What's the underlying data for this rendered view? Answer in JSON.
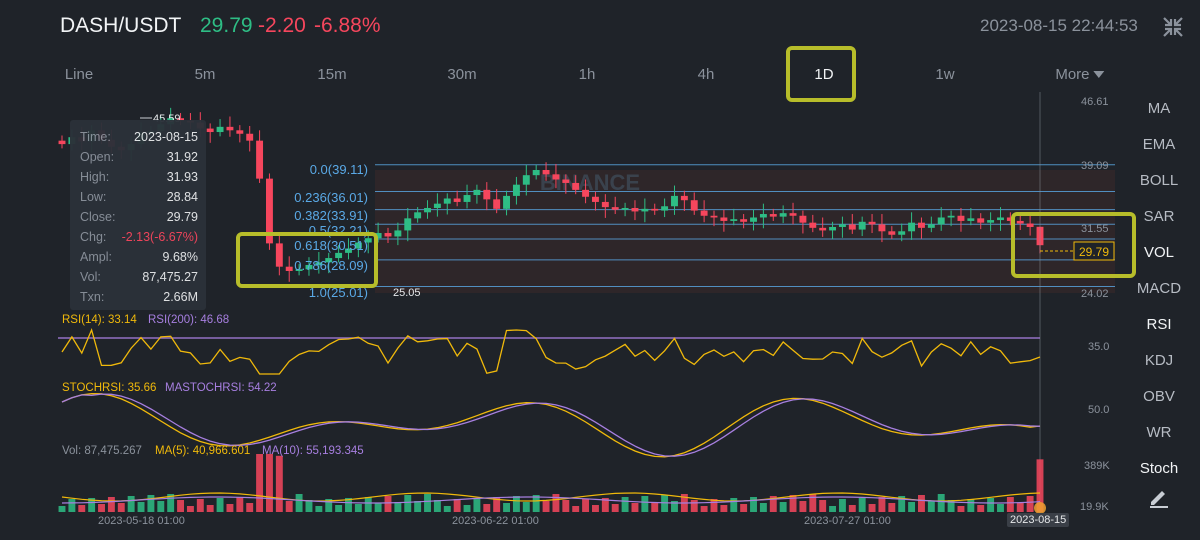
{
  "header": {
    "pair": "DASH/USDT",
    "last_price": "29.79",
    "change": "-2.20",
    "change_pct": "-6.88%",
    "timestamp": "2023-08-15 22:44:53",
    "fullscreen_icon": "collapse-arrows-icon"
  },
  "tabs": [
    {
      "label": "Line"
    },
    {
      "label": "5m"
    },
    {
      "label": "15m"
    },
    {
      "label": "30m"
    },
    {
      "label": "1h"
    },
    {
      "label": "4h"
    },
    {
      "label": "1D"
    },
    {
      "label": "1w"
    },
    {
      "label": "More"
    }
  ],
  "active_tab": "1D",
  "indicators": [
    "MA",
    "EMA",
    "BOLL",
    "SAR",
    "VOL",
    "MACD",
    "RSI",
    "KDJ",
    "OBV",
    "WR",
    "Stoch"
  ],
  "active_indicators": [
    "VOL",
    "RSI"
  ],
  "edit_icon": "pencil-icon",
  "tooltip": {
    "rows": [
      {
        "k": "Time:",
        "v": "2023-08-15"
      },
      {
        "k": "Open:",
        "v": "31.92"
      },
      {
        "k": "High:",
        "v": "31.93"
      },
      {
        "k": "Low:",
        "v": "28.84"
      },
      {
        "k": "Close:",
        "v": "29.79"
      },
      {
        "k": "Chg:",
        "v": "-2.13(-6.67%)"
      },
      {
        "k": "Ampl:",
        "v": "9.68%"
      },
      {
        "k": "Vol:",
        "v": "87,475.27"
      },
      {
        "k": "Txn:",
        "v": "2.66M"
      }
    ]
  },
  "price_axis": {
    "top": "46.61",
    "p2": "39.09",
    "p3": "31.55",
    "bottom": "24.02"
  },
  "high_marker": "45.59",
  "low_marker": "25.05",
  "current_price_label": "29.79",
  "fib_levels": [
    {
      "label": "0.0(39.11)"
    },
    {
      "label": "0.236(36.01)"
    },
    {
      "label": "0.382(33.91)"
    },
    {
      "label": "0.5(32.21)"
    },
    {
      "label": "0.618(30.51)"
    },
    {
      "label": "0.786(28.09)"
    },
    {
      "label": "1.0(25.01)"
    }
  ],
  "watermark": "BINANCE",
  "rsi": {
    "rsi14": "RSI(14): 33.14",
    "rsi200": "RSI(200): 46.68",
    "axis": "35.0"
  },
  "stochrsi": {
    "stoch": "STOCHRSI: 35.66",
    "mastoch": "MASTOCHRSI: 54.22",
    "axis": "50.0"
  },
  "volume": {
    "vol": "Vol: 87,475.267",
    "ma5": "MA(5): 40,966.601",
    "ma10": "MA(10): 55,193.345",
    "axis_top": "389K",
    "axis_bottom": "19.9K"
  },
  "dates": [
    "2023-05-18 01:00",
    "2023-06-22 01:00",
    "2023-07-27 01:00",
    "2023-08-15"
  ],
  "colors": {
    "up": "#2ebd85",
    "down": "#f6465d",
    "fib": "#5aa9e6",
    "highlight": "#b7bd2a",
    "rsi14": "#f0b90b",
    "rsi200": "#a77fe0"
  },
  "chart_data": {
    "type": "candlestick",
    "closes": [
      41.5,
      42.3,
      41.8,
      43.1,
      42.0,
      41.2,
      40.8,
      41.5,
      42.8,
      43.0,
      43.8,
      44.5,
      44.2,
      44.0,
      43.3,
      42.9,
      43.5,
      43.1,
      42.7,
      41.9,
      37.5,
      30.0,
      27.3,
      26.8,
      27.0,
      27.5,
      27.8,
      28.3,
      28.9,
      29.4,
      30.1,
      30.6,
      31.2,
      30.8,
      31.5,
      32.9,
      33.6,
      34.1,
      34.6,
      35.2,
      34.8,
      35.6,
      36.2,
      35.1,
      34.0,
      35.5,
      36.8,
      37.9,
      38.5,
      38.0,
      37.4,
      37.0,
      36.2,
      35.4,
      34.8,
      34.2,
      33.9,
      34.1,
      33.7,
      34.0,
      33.8,
      34.3,
      35.5,
      35.0,
      33.8,
      33.2,
      33.0,
      32.6,
      32.8,
      32.5,
      33.0,
      33.4,
      33.1,
      33.5,
      33.2,
      32.4,
      31.8,
      31.5,
      31.9,
      32.2,
      31.6,
      32.5,
      32.2,
      31.4,
      31.0,
      31.4,
      32.4,
      31.8,
      32.2,
      33.0,
      33.2,
      32.6,
      32.9,
      32.4,
      32.7,
      33.0,
      32.6,
      32.3,
      31.9,
      29.79
    ],
    "price_range": [
      24.02,
      46.61
    ],
    "rsi_axis": "35.0",
    "stoch_axis": "50.0"
  }
}
